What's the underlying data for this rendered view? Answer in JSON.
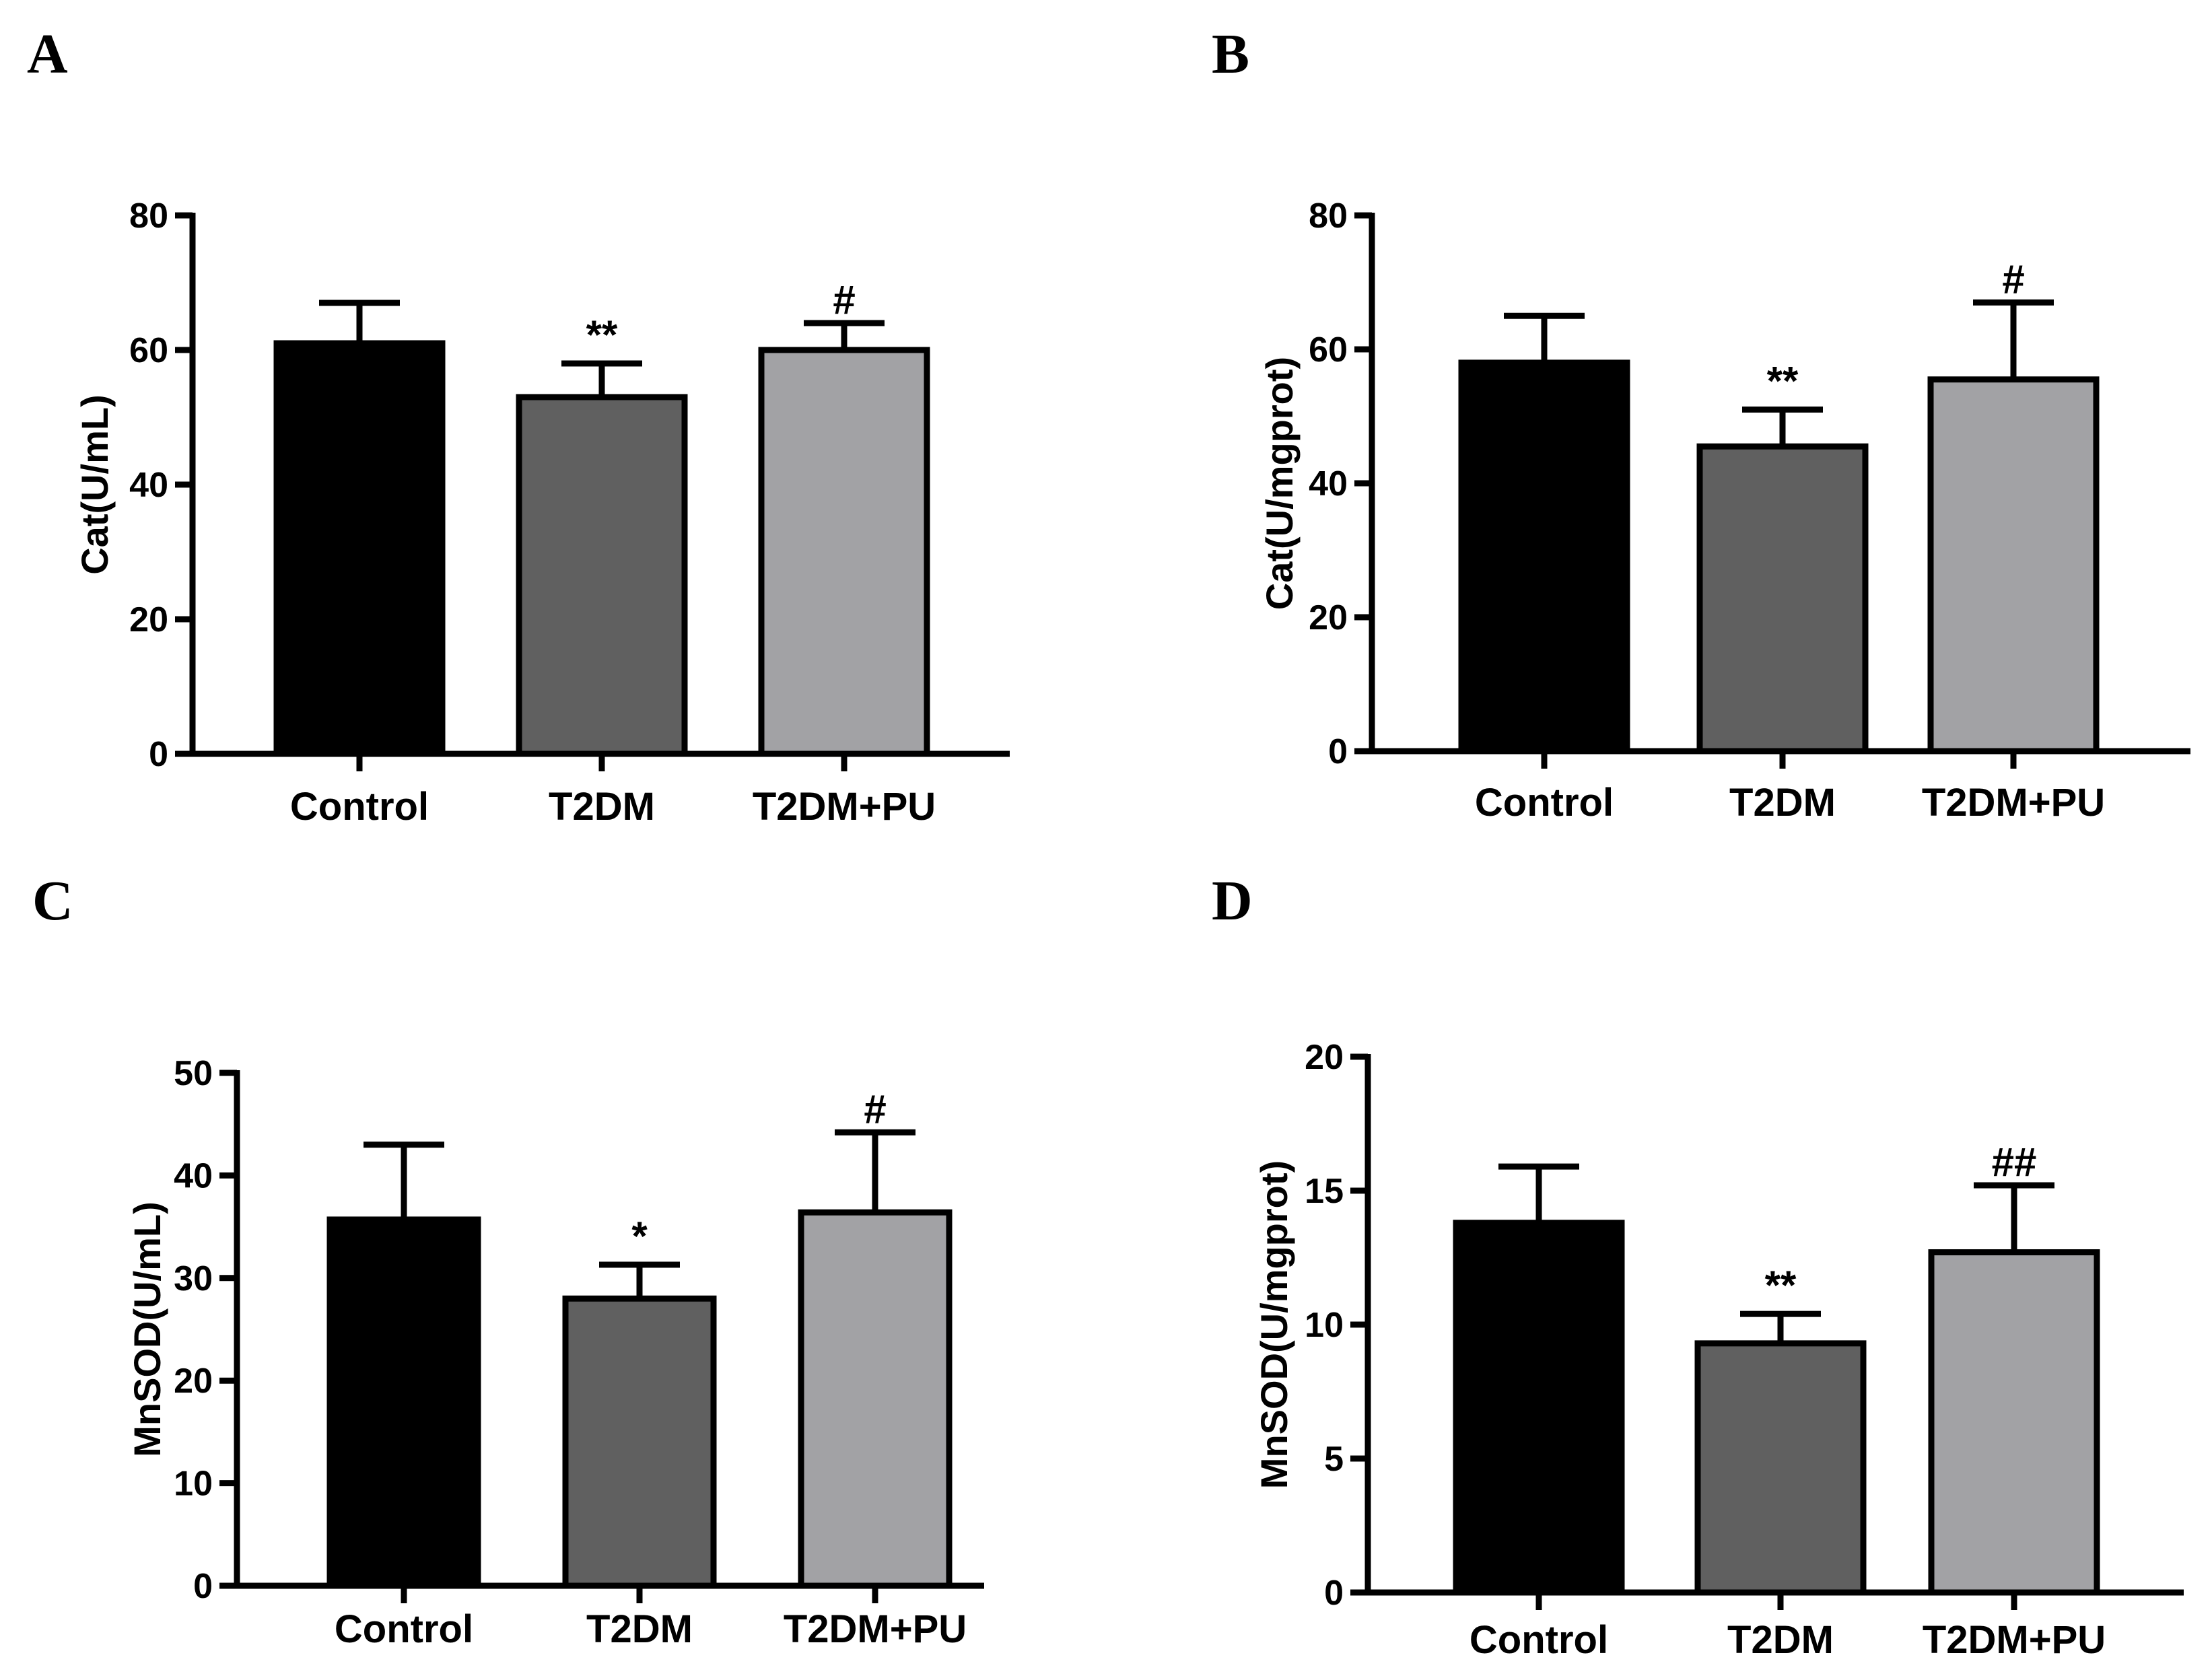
{
  "chart_data": [
    {
      "panel": "A",
      "type": "bar",
      "categories": [
        "Control",
        "T2DM",
        "T2DM+PU"
      ],
      "values": [
        61,
        53,
        60
      ],
      "errors": [
        6,
        5,
        4
      ],
      "significance": [
        "",
        "**",
        "#"
      ],
      "colors": [
        "#000000",
        "#606060",
        "#a2a2a5"
      ],
      "ylabel": "Cat(U/mL)",
      "ylim": [
        0,
        80
      ],
      "yticks": [
        0,
        20,
        40,
        60,
        80
      ],
      "xlabel": "",
      "grid": false
    },
    {
      "panel": "B",
      "type": "bar",
      "categories": [
        "Control",
        "T2DM",
        "T2DM+PU"
      ],
      "values": [
        58,
        45.5,
        55.5
      ],
      "errors": [
        7,
        5.5,
        11.5
      ],
      "significance": [
        "",
        "**",
        "#"
      ],
      "colors": [
        "#000000",
        "#606060",
        "#a2a2a5"
      ],
      "ylabel": "Cat(U/mgprot)",
      "ylim": [
        0,
        80
      ],
      "yticks": [
        0,
        20,
        40,
        60,
        80
      ],
      "xlabel": "",
      "grid": false
    },
    {
      "panel": "C",
      "type": "bar",
      "categories": [
        "Control",
        "T2DM",
        "T2DM+PU"
      ],
      "values": [
        35.7,
        28,
        36.4
      ],
      "errors": [
        7.3,
        3.3,
        7.8
      ],
      "significance": [
        "",
        "*",
        "#"
      ],
      "colors": [
        "#000000",
        "#606060",
        "#a2a2a5"
      ],
      "ylabel": "MnSOD(U/mL)",
      "ylim": [
        0,
        50
      ],
      "yticks": [
        0,
        10,
        20,
        30,
        40,
        50
      ],
      "xlabel": "",
      "grid": false
    },
    {
      "panel": "D",
      "type": "bar",
      "categories": [
        "Control",
        "T2DM",
        "T2DM+PU"
      ],
      "values": [
        13.8,
        9.3,
        12.7
      ],
      "errors": [
        2.1,
        1.1,
        2.5
      ],
      "significance": [
        "",
        "**",
        "##"
      ],
      "colors": [
        "#000000",
        "#606060",
        "#a2a2a5"
      ],
      "ylabel": "MnSOD(U/mgprot)",
      "ylim": [
        0,
        20
      ],
      "yticks": [
        0,
        5,
        10,
        15,
        20
      ],
      "xlabel": "",
      "grid": false
    }
  ]
}
